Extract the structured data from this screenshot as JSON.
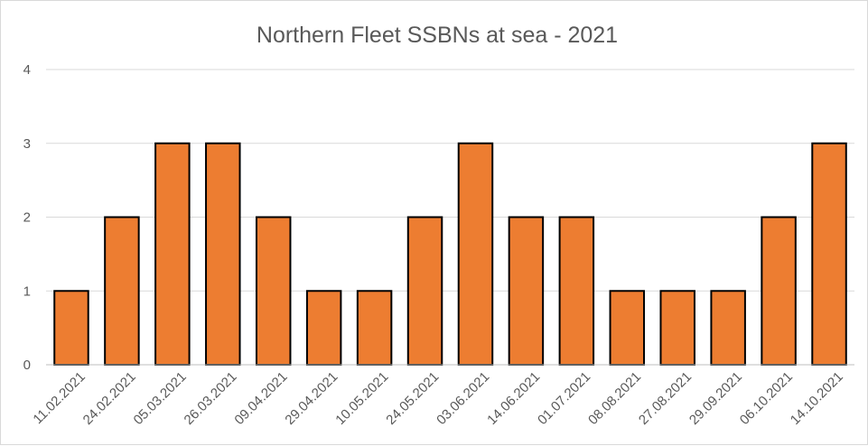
{
  "chart_data": {
    "type": "bar",
    "title": "Northern Fleet SSBNs at sea - 2021",
    "xlabel": "",
    "ylabel": "",
    "categories": [
      "11.02.2021",
      "24.02.2021",
      "05.03.2021",
      "26.03.2021",
      "09.04.2021",
      "29.04.2021",
      "10.05.2021",
      "24.05.2021",
      "03.06.2021",
      "14.06.2021",
      "01.07.2021",
      "08.08.2021",
      "27.08.2021",
      "29.09.2021",
      "06.10.2021",
      "14.10.2021"
    ],
    "values": [
      1,
      2,
      3,
      3,
      2,
      1,
      1,
      2,
      3,
      2,
      2,
      1,
      1,
      1,
      2,
      3
    ],
    "ylim": [
      0,
      4
    ],
    "yticks": [
      0,
      1,
      2,
      3,
      4
    ],
    "grid": true,
    "legend": "none",
    "bar_color": "#ED7D31",
    "bar_edge_color": "#000000"
  }
}
